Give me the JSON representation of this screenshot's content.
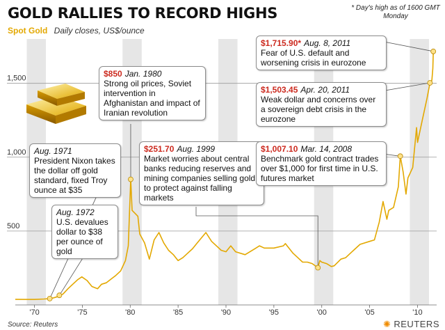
{
  "title": "GOLD RALLIES TO RECORD HIGHS",
  "subtitle_series": "Spot Gold",
  "subtitle_units": "Daily closes, US$/ounce",
  "footnote": "* Day's high as of 1600 GMT Monday",
  "source": "Source: Reuters",
  "logo": "REUTERS",
  "colors": {
    "line": "#e3a800",
    "band": "#e6e6e6",
    "value_red": "#cc2a1f"
  },
  "chart_data": {
    "type": "line",
    "title": "GOLD RALLIES TO RECORD HIGHS",
    "xlabel": "",
    "ylabel": "US$/ounce",
    "xlim": [
      1968,
      2012
    ],
    "ylim": [
      0,
      1800
    ],
    "x_ticks": [
      1970,
      1975,
      1980,
      1985,
      1990,
      1995,
      2000,
      2005,
      2010
    ],
    "x_tick_labels": [
      "'70",
      "'75",
      "'80",
      "'85",
      "'90",
      "'95",
      "'00",
      "'05",
      "'10"
    ],
    "y_ticks": [
      500,
      1000,
      1500
    ],
    "y_tick_labels": [
      "500",
      "1,000",
      "1,500"
    ],
    "series": [
      {
        "name": "Spot Gold",
        "x": [
          1968.0,
          1969.0,
          1970.0,
          1971.0,
          1971.6,
          1972.0,
          1972.6,
          1973.0,
          1973.5,
          1974.0,
          1974.5,
          1974.95,
          1975.5,
          1976.0,
          1976.6,
          1977.0,
          1977.5,
          1978.0,
          1978.5,
          1979.0,
          1979.5,
          1979.8,
          1980.05,
          1980.2,
          1980.5,
          1980.8,
          1981.0,
          1981.5,
          1982.0,
          1982.5,
          1983.0,
          1983.5,
          1984.0,
          1984.5,
          1985.0,
          1985.5,
          1986.0,
          1986.5,
          1987.0,
          1987.9,
          1988.5,
          1989.0,
          1989.5,
          1990.0,
          1990.5,
          1991.0,
          1992.0,
          1993.0,
          1993.5,
          1994.0,
          1995.0,
          1996.0,
          1996.2,
          1997.0,
          1997.5,
          1998.0,
          1998.5,
          1999.0,
          1999.6,
          1999.8,
          2000.0,
          2000.5,
          2001.0,
          2001.3,
          2002.0,
          2002.5,
          2003.0,
          2004.0,
          2005.0,
          2005.5,
          2006.0,
          2006.4,
          2006.8,
          2007.0,
          2007.5,
          2008.0,
          2008.2,
          2008.5,
          2008.8,
          2009.0,
          2009.5,
          2009.9,
          2010.0,
          2010.5,
          2011.0,
          2011.3,
          2011.5,
          2011.6,
          2011.65
        ],
        "y": [
          38,
          37,
          37,
          40,
          43,
          48,
          60,
          75,
          110,
          140,
          170,
          190,
          165,
          125,
          110,
          140,
          150,
          175,
          200,
          230,
          300,
          400,
          850,
          640,
          620,
          600,
          480,
          420,
          310,
          440,
          490,
          420,
          370,
          340,
          300,
          320,
          350,
          380,
          420,
          490,
          430,
          400,
          370,
          360,
          400,
          360,
          340,
          380,
          400,
          385,
          385,
          400,
          415,
          350,
          320,
          290,
          290,
          280,
          252,
          300,
          290,
          280,
          260,
          265,
          310,
          320,
          350,
          410,
          430,
          440,
          560,
          700,
          580,
          640,
          660,
          800,
          1007,
          900,
          750,
          860,
          930,
          1200,
          1100,
          1250,
          1400,
          1503,
          1520,
          1600,
          1716
        ],
        "line_color": "#e3a800"
      }
    ],
    "annotations": [
      {
        "id": "aug1971",
        "date": "Aug. 1971",
        "text": "President Nixon takes the dollar off gold standard, fixed Troy ounce at $35",
        "x": 1971.6,
        "y": 43
      },
      {
        "id": "aug1972",
        "date": "Aug. 1972",
        "text": "U.S. devalues dollar to $38 per ounce of gold",
        "x": 1972.6,
        "y": 65
      },
      {
        "id": "jan1980",
        "value": "$850",
        "date": "Jan. 1980",
        "text": "Strong oil prices, Soviet intervention in Afghanistan and impact of Iranian revolution",
        "x": 1980.05,
        "y": 850
      },
      {
        "id": "aug1999",
        "value": "$251.70",
        "date": "Aug. 1999",
        "text": "Market worries about central banks reducing reserves and mining companies selling gold to protect against falling markets",
        "x": 1999.6,
        "y": 252
      },
      {
        "id": "mar2008",
        "value": "$1,007.10",
        "date": "Mar. 14, 2008",
        "text": "Benchmark gold contract trades over $1,000 for first time in U.S. futures market",
        "x": 2008.2,
        "y": 1007
      },
      {
        "id": "apr2011",
        "value": "$1,503.45",
        "date": "Apr. 20, 2011",
        "text": "Weak dollar and concerns over a sovereign debt crisis in the eurozone",
        "x": 2011.3,
        "y": 1503
      },
      {
        "id": "aug2011",
        "value": "$1,715.90*",
        "date": "Aug. 8, 2011",
        "text": "Fear of U.S. default and worsening crisis in eurozone",
        "x": 2011.65,
        "y": 1716
      }
    ]
  }
}
